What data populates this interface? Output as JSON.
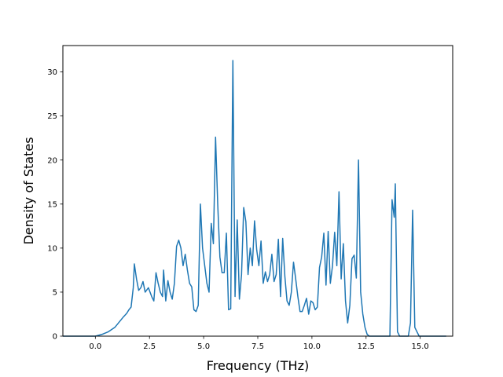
{
  "chart_data": {
    "type": "line",
    "title": "",
    "xlabel": "Frequency (THz)",
    "ylabel": "Density of States",
    "xlim": [
      -1.5,
      16.5
    ],
    "ylim": [
      0,
      33
    ],
    "x_ticks": [
      0.0,
      2.5,
      5.0,
      7.5,
      10.0,
      12.5,
      15.0
    ],
    "x_tick_labels": [
      "0.0",
      "2.5",
      "5.0",
      "7.5",
      "10.0",
      "12.5",
      "15.0"
    ],
    "y_ticks": [
      0,
      5,
      10,
      15,
      20,
      25,
      30
    ],
    "y_tick_labels": [
      "0",
      "5",
      "10",
      "15",
      "20",
      "25",
      "30"
    ],
    "grid": false,
    "line_color": "#1f77b4",
    "series": [
      {
        "x": [
          -1.5,
          -0.5,
          0.0,
          0.3,
          0.6,
          0.9,
          1.1,
          1.3,
          1.45,
          1.55,
          1.65,
          1.75,
          1.8,
          1.9,
          2.0,
          2.1,
          2.2,
          2.3,
          2.45,
          2.6,
          2.7,
          2.8,
          2.9,
          3.0,
          3.1,
          3.15,
          3.25,
          3.35,
          3.45,
          3.55,
          3.65,
          3.75,
          3.85,
          3.95,
          4.05,
          4.15,
          4.25,
          4.35,
          4.45,
          4.55,
          4.65,
          4.75,
          4.85,
          4.95,
          5.05,
          5.15,
          5.25,
          5.35,
          5.45,
          5.55,
          5.65,
          5.75,
          5.85,
          5.95,
          6.05,
          6.15,
          6.25,
          6.35,
          6.45,
          6.55,
          6.65,
          6.75,
          6.85,
          6.95,
          7.05,
          7.15,
          7.25,
          7.35,
          7.45,
          7.55,
          7.65,
          7.75,
          7.85,
          7.95,
          8.05,
          8.15,
          8.25,
          8.35,
          8.45,
          8.55,
          8.65,
          8.75,
          8.85,
          8.95,
          9.05,
          9.15,
          9.25,
          9.35,
          9.45,
          9.55,
          9.65,
          9.75,
          9.85,
          9.95,
          10.05,
          10.15,
          10.25,
          10.35,
          10.45,
          10.55,
          10.65,
          10.75,
          10.85,
          10.95,
          11.05,
          11.15,
          11.25,
          11.35,
          11.45,
          11.55,
          11.65,
          11.75,
          11.85,
          11.95,
          12.05,
          12.15,
          12.25,
          12.35,
          12.45,
          12.55,
          12.65,
          12.8,
          13.0,
          13.6,
          13.7,
          13.8,
          13.85,
          13.95,
          14.05,
          14.2,
          14.35,
          14.45,
          14.55,
          14.65,
          14.75,
          14.95,
          15.5,
          16.2
        ],
        "y": [
          0,
          0,
          0,
          0.2,
          0.5,
          1.0,
          1.6,
          2.2,
          2.6,
          3.0,
          3.3,
          5.5,
          8.2,
          6.5,
          5.2,
          5.5,
          6.2,
          5.0,
          5.5,
          4.5,
          4.0,
          7.2,
          6.0,
          5.0,
          4.5,
          7.5,
          4.0,
          6.3,
          5.0,
          4.2,
          6.0,
          10.2,
          10.9,
          10.0,
          8.0,
          9.3,
          7.5,
          6.0,
          5.6,
          3.0,
          2.8,
          3.5,
          15.0,
          10.0,
          8.0,
          6.0,
          5.0,
          12.8,
          10.5,
          22.6,
          15.0,
          9.0,
          7.2,
          7.2,
          11.7,
          3.0,
          3.1,
          31.3,
          4.5,
          13.2,
          4.2,
          7.0,
          14.6,
          13.0,
          7.0,
          10.0,
          8.0,
          13.1,
          9.8,
          8.0,
          10.8,
          6.0,
          7.3,
          6.2,
          7.0,
          9.3,
          6.2,
          7.0,
          11.0,
          4.5,
          11.1,
          6.8,
          4.0,
          3.5,
          5.0,
          8.4,
          6.5,
          4.5,
          2.8,
          2.8,
          3.5,
          4.3,
          2.5,
          4.0,
          3.8,
          3.0,
          3.3,
          7.8,
          9.0,
          11.7,
          5.8,
          11.9,
          6.0,
          8.0,
          11.8,
          8.0,
          16.4,
          6.5,
          10.5,
          4.0,
          1.5,
          3.5,
          8.8,
          9.2,
          6.6,
          20.0,
          5.0,
          2.5,
          1.0,
          0.2,
          0,
          0,
          0,
          0,
          15.5,
          13.5,
          17.3,
          0.5,
          0,
          0,
          0,
          0,
          1.5,
          14.3,
          1.0,
          0,
          0,
          0
        ]
      }
    ]
  }
}
